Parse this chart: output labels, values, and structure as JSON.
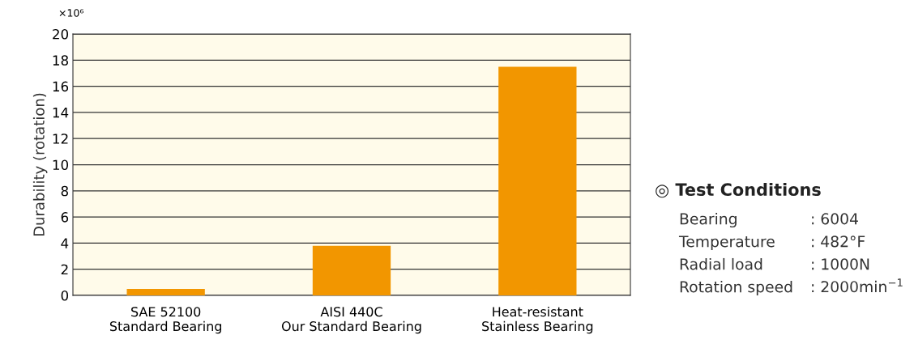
{
  "chart_data": {
    "type": "bar",
    "ylabel": "Durability (rotation)",
    "categories": [
      "SAE 52100\nStandard Bearing",
      "AISI 440C\nOur Standard Bearing",
      "Heat-resistant\nStainless Bearing"
    ],
    "values": [
      0.5,
      3.8,
      17.5
    ],
    "color": "#f29600",
    "ylim": [
      0,
      20
    ],
    "yticks": [
      0,
      2,
      4,
      6,
      8,
      10,
      12,
      14,
      16,
      18,
      20
    ],
    "grid": "y",
    "annotations": [
      "×10⁶",
      "◎ Test Conditions",
      "Bearing : 6004",
      "Temperature : 482°F",
      "Radial load : 1000N",
      "Rotation speed : 2000min$^{−1}$"
    ]
  }
}
